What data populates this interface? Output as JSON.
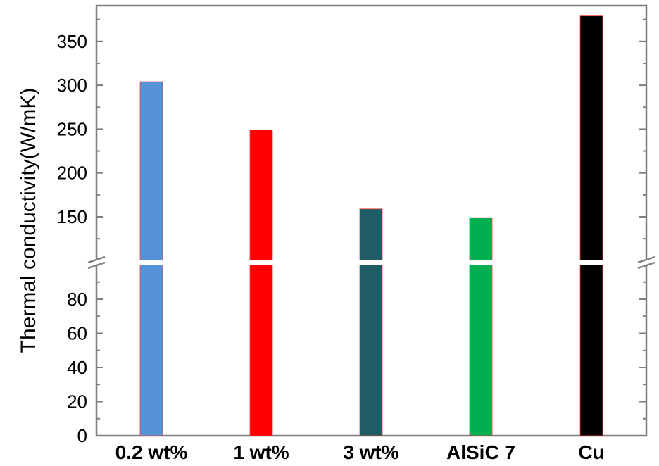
{
  "chart_data": {
    "type": "bar",
    "title": "",
    "xlabel": "",
    "ylabel": "Thermal conductivity(W/mK)",
    "categories": [
      "0.2 wt%",
      "1 wt%",
      "3 wt%",
      "AlSiC 7",
      "Cu"
    ],
    "values": [
      304,
      249,
      159,
      149,
      379
    ],
    "colors": [
      "#5592d8",
      "#ff0000",
      "#1f5c66",
      "#00b050",
      "#000000"
    ],
    "axis_break": [
      100,
      100
    ],
    "ylim_lower": [
      0,
      100
    ],
    "ylim_upper": [
      100,
      385
    ],
    "lower_ticks": [
      "0",
      "20",
      "40",
      "60",
      "80"
    ],
    "upper_ticks": [
      "150",
      "200",
      "250",
      "300",
      "350"
    ],
    "grid": false,
    "legend": "none"
  }
}
